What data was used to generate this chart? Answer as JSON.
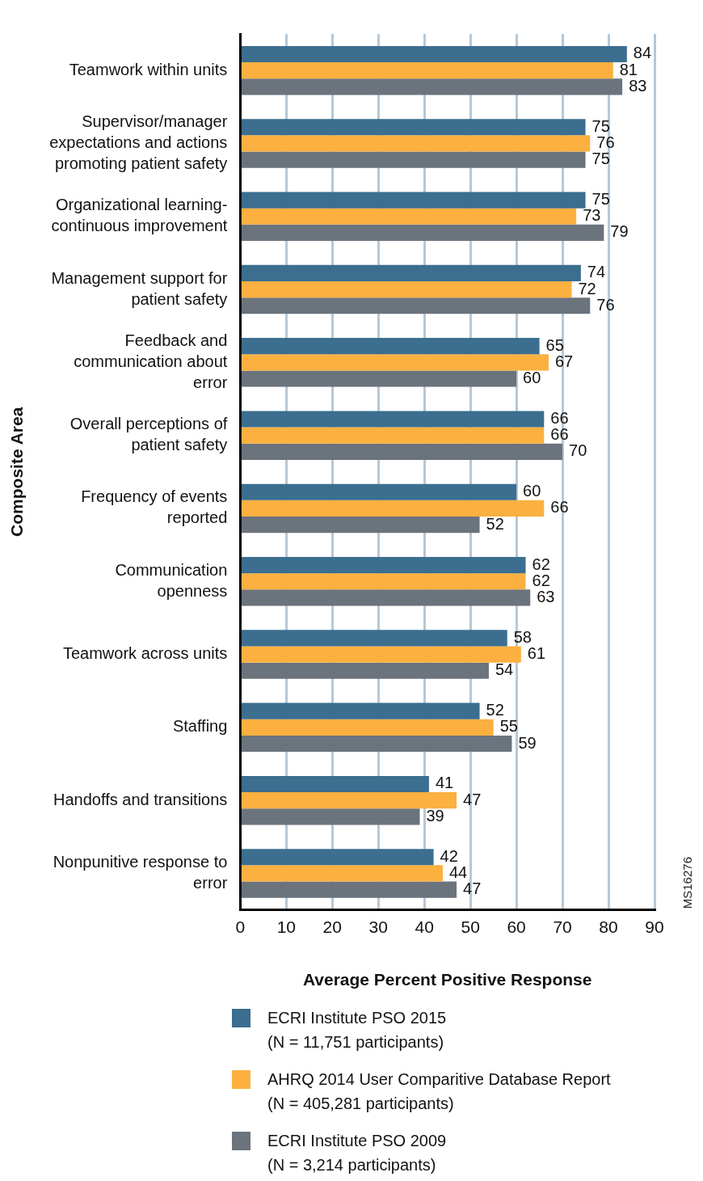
{
  "chart_data": {
    "type": "bar",
    "orientation": "horizontal",
    "xlabel": "Average Percent Positive Response",
    "ylabel": "Composite Area",
    "categories": [
      "Teamwork within units",
      "Supervisor/manager expectations and actions promoting patient safety",
      "Organizational learning-continuous improvement",
      "Management support for patient safety",
      "Feedback and communication about error",
      "Overall perceptions of patient safety",
      "Frequency of events reported",
      "Communication openness",
      "Teamwork across units",
      "Staffing",
      "Handoffs and transitions",
      "Nonpunitive response to error"
    ],
    "series": [
      {
        "name": "ECRI Institute PSO 2015 (N = 11,751 participants)",
        "color": "#3b6e8f",
        "values": [
          84,
          75,
          75,
          74,
          65,
          66,
          60,
          62,
          58,
          52,
          41,
          42
        ]
      },
      {
        "name": "AHRQ 2014 User Comparitive Database Report (N = 405,281 participants)",
        "color": "#fbb040",
        "values": [
          81,
          76,
          73,
          72,
          67,
          66,
          66,
          62,
          61,
          55,
          47,
          44
        ]
      },
      {
        "name": "ECRI Institute PSO 2009 (N = 3,214 participants)",
        "color": "#6b737d",
        "values": [
          83,
          75,
          79,
          76,
          60,
          70,
          52,
          63,
          54,
          59,
          39,
          47
        ]
      }
    ],
    "xlim": [
      0,
      90
    ],
    "xticks": [
      0,
      10,
      20,
      30,
      40,
      50,
      60,
      70,
      80,
      90
    ],
    "grid": "x",
    "data_labels": true,
    "legend": "bottom",
    "annotations": [
      "MS16276"
    ]
  }
}
